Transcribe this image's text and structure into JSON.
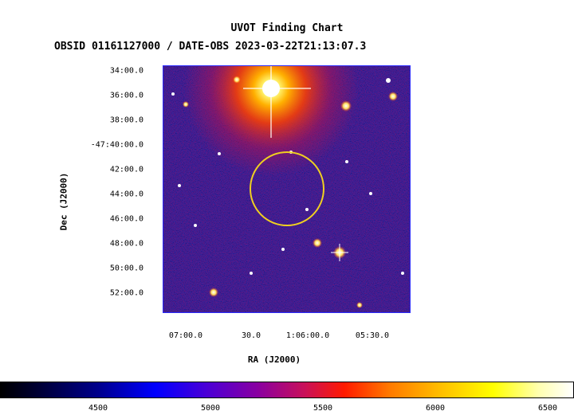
{
  "header": {
    "title": "UVOT Finding Chart",
    "obs_line": "OBSID 01161127000 / DATE-OBS 2023-03-22T21:13:07.3"
  },
  "axes": {
    "ylabel": "Dec (J2000)",
    "xlabel": "RA (J2000)",
    "yticks": [
      "34:00.0",
      "36:00.0",
      "38:00.0",
      "-47:40:00.0",
      "42:00.0",
      "44:00.0",
      "46:00.0",
      "48:00.0",
      "50:00.0",
      "52:00.0"
    ],
    "xticks": [
      "07:00.0",
      "30.0",
      "1:06:00.0",
      "05:30.0"
    ]
  },
  "colorbar": {
    "ticks": [
      "4500",
      "5000",
      "5500",
      "6000",
      "6500"
    ]
  },
  "colors": {
    "frame": "#2b2bff",
    "region_circle": "#f0d020",
    "background_field": "#2a2aa8"
  }
}
